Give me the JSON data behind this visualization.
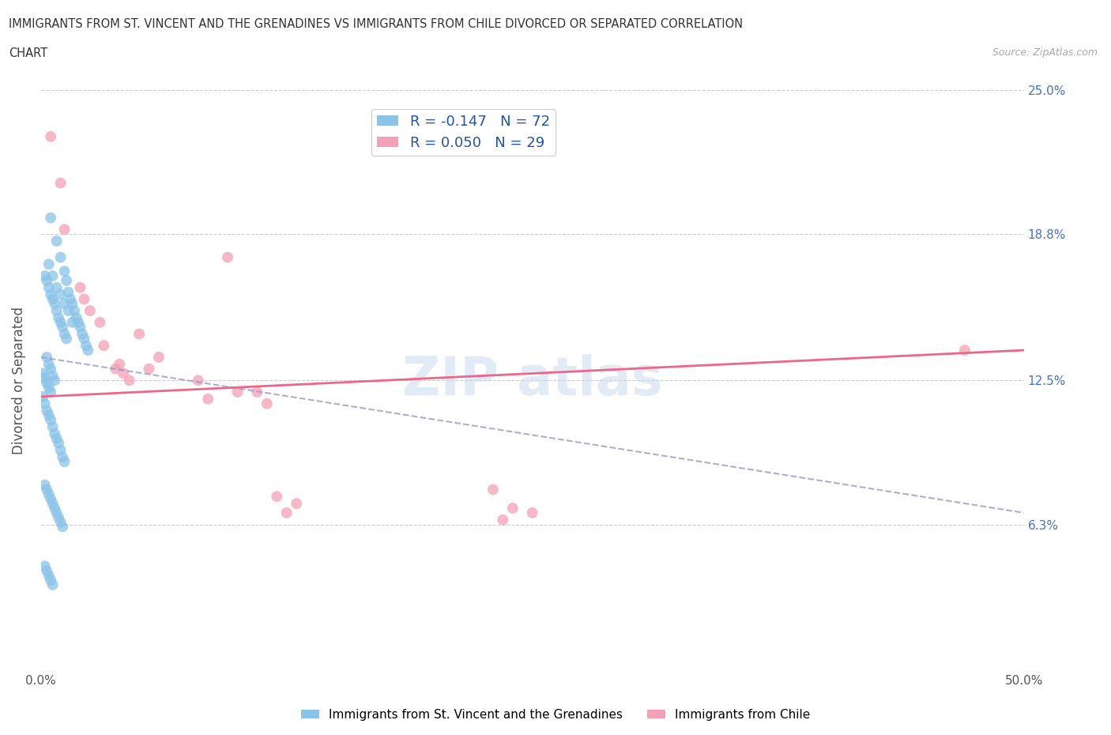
{
  "title_line1": "IMMIGRANTS FROM ST. VINCENT AND THE GRENADINES VS IMMIGRANTS FROM CHILE DIVORCED OR SEPARATED CORRELATION",
  "title_line2": "CHART",
  "source_text": "Source: ZipAtlas.com",
  "ylabel": "Divorced or Separated",
  "xlim": [
    0.0,
    0.5
  ],
  "ylim": [
    0.0,
    0.25
  ],
  "xtick_positions": [
    0.0,
    0.1,
    0.2,
    0.3,
    0.4,
    0.5
  ],
  "xticklabels": [
    "0.0%",
    "",
    "",
    "",
    "",
    "50.0%"
  ],
  "ytick_positions": [
    0.0,
    0.063,
    0.125,
    0.188,
    0.25
  ],
  "yticklabels": [
    "",
    "6.3%",
    "12.5%",
    "18.8%",
    "25.0%"
  ],
  "hlines": [
    0.063,
    0.125,
    0.188,
    0.25
  ],
  "legend_r1": "R = -0.147   N = 72",
  "legend_r2": "R = 0.050   N = 29",
  "color_sv": "#89C4E8",
  "color_chile": "#F4A0B5",
  "trendline_sv_color": "#9999CC",
  "trendline_chile_color": "#EE6688",
  "sv_x": [
    0.005,
    0.008,
    0.01,
    0.012,
    0.013,
    0.014,
    0.015,
    0.016,
    0.017,
    0.018,
    0.019,
    0.02,
    0.021,
    0.022,
    0.023,
    0.024,
    0.004,
    0.006,
    0.008,
    0.01,
    0.012,
    0.014,
    0.016,
    0.002,
    0.003,
    0.004,
    0.005,
    0.006,
    0.007,
    0.008,
    0.009,
    0.01,
    0.011,
    0.012,
    0.013,
    0.003,
    0.004,
    0.005,
    0.006,
    0.007,
    0.001,
    0.002,
    0.003,
    0.004,
    0.005,
    0.001,
    0.002,
    0.003,
    0.004,
    0.005,
    0.006,
    0.007,
    0.008,
    0.009,
    0.01,
    0.011,
    0.012,
    0.002,
    0.003,
    0.004,
    0.005,
    0.006,
    0.007,
    0.008,
    0.009,
    0.01,
    0.011,
    0.002,
    0.003,
    0.004,
    0.005,
    0.006
  ],
  "sv_y": [
    0.195,
    0.185,
    0.178,
    0.172,
    0.168,
    0.163,
    0.16,
    0.158,
    0.155,
    0.152,
    0.15,
    0.148,
    0.145,
    0.143,
    0.14,
    0.138,
    0.175,
    0.17,
    0.165,
    0.162,
    0.158,
    0.155,
    0.15,
    0.17,
    0.168,
    0.165,
    0.162,
    0.16,
    0.158,
    0.155,
    0.152,
    0.15,
    0.148,
    0.145,
    0.143,
    0.135,
    0.132,
    0.13,
    0.127,
    0.125,
    0.128,
    0.126,
    0.124,
    0.122,
    0.12,
    0.118,
    0.115,
    0.112,
    0.11,
    0.108,
    0.105,
    0.102,
    0.1,
    0.098,
    0.095,
    0.092,
    0.09,
    0.08,
    0.078,
    0.076,
    0.074,
    0.072,
    0.07,
    0.068,
    0.066,
    0.064,
    0.062,
    0.045,
    0.043,
    0.041,
    0.039,
    0.037
  ],
  "chile_x": [
    0.005,
    0.01,
    0.012,
    0.02,
    0.022,
    0.025,
    0.03,
    0.032,
    0.038,
    0.04,
    0.042,
    0.045,
    0.05,
    0.055,
    0.06,
    0.08,
    0.085,
    0.095,
    0.1,
    0.11,
    0.115,
    0.12,
    0.125,
    0.13,
    0.23,
    0.235,
    0.24,
    0.25,
    0.47
  ],
  "chile_y": [
    0.23,
    0.21,
    0.19,
    0.165,
    0.16,
    0.155,
    0.15,
    0.14,
    0.13,
    0.132,
    0.128,
    0.125,
    0.145,
    0.13,
    0.135,
    0.125,
    0.117,
    0.178,
    0.12,
    0.12,
    0.115,
    0.075,
    0.068,
    0.072,
    0.078,
    0.065,
    0.07,
    0.068,
    0.138
  ],
  "sv_trendline_x": [
    0.0,
    0.5
  ],
  "sv_trendline_y": [
    0.135,
    0.068
  ],
  "chile_trendline_x": [
    0.0,
    0.5
  ],
  "chile_trendline_y": [
    0.118,
    0.138
  ]
}
